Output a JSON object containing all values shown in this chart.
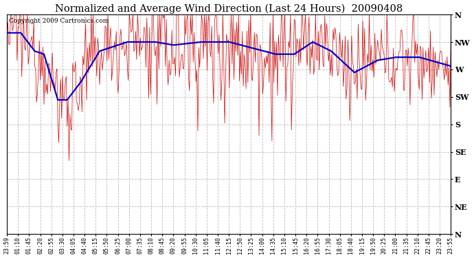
{
  "title": "Normalized and Average Wind Direction (Last 24 Hours)  20090408",
  "copyright": "Copyright 2009 Cartronics.com",
  "background_color": "#ffffff",
  "plot_bg_color": "#ffffff",
  "grid_color": "#bbbbbb",
  "ytick_labels": [
    "N",
    "NW",
    "W",
    "SW",
    "S",
    "SE",
    "E",
    "NE",
    "N"
  ],
  "ytick_values": [
    360,
    315,
    270,
    225,
    180,
    135,
    90,
    45,
    0
  ],
  "ymin": 0,
  "ymax": 360,
  "xtick_labels": [
    "23:59",
    "01:10",
    "01:45",
    "02:20",
    "02:55",
    "03:30",
    "04:05",
    "04:40",
    "05:15",
    "05:50",
    "06:25",
    "07:00",
    "07:35",
    "08:10",
    "08:45",
    "09:20",
    "09:55",
    "10:30",
    "11:05",
    "11:40",
    "12:15",
    "12:50",
    "13:25",
    "14:00",
    "14:35",
    "15:10",
    "15:45",
    "16:20",
    "16:55",
    "17:30",
    "18:05",
    "18:40",
    "19:15",
    "19:50",
    "20:25",
    "21:00",
    "21:35",
    "22:10",
    "22:45",
    "23:20",
    "23:55"
  ],
  "raw_color": "#cc0000",
  "avg_color": "#0000cc",
  "raw_linewidth": 0.5,
  "avg_linewidth": 1.6,
  "title_fontsize": 10.5,
  "copyright_fontsize": 6.5,
  "tick_fontsize": 6,
  "ytick_fontsize": 8
}
